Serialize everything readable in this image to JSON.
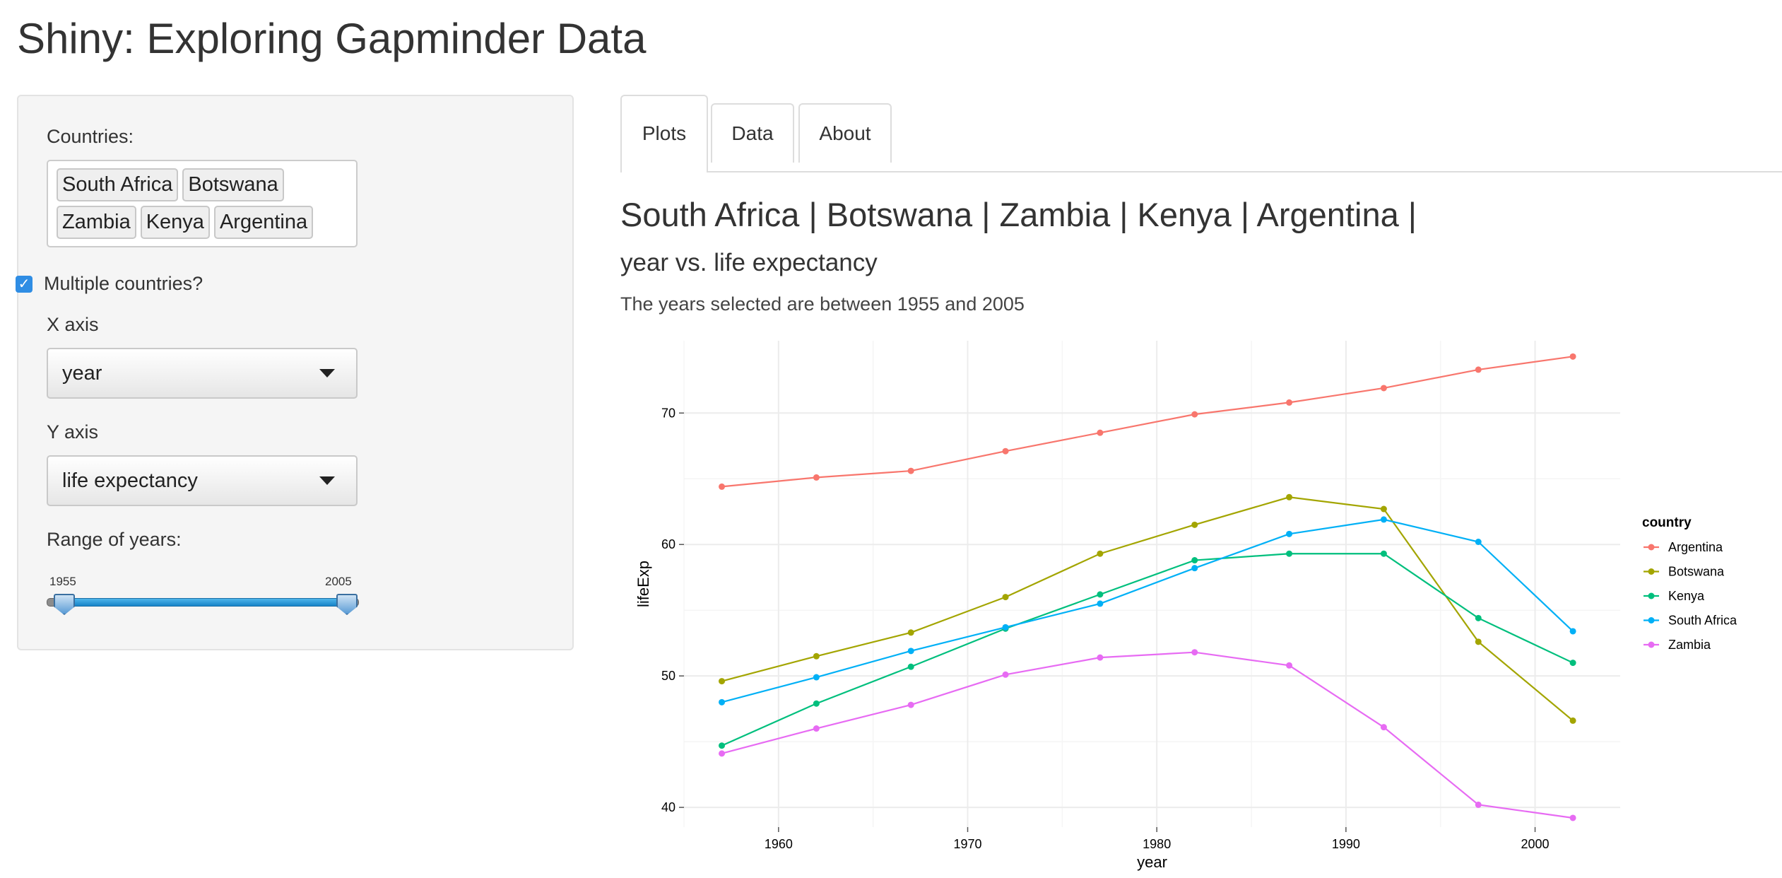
{
  "app": {
    "title": "Shiny: Exploring Gapminder Data"
  },
  "sidebar": {
    "countries_label": "Countries:",
    "countries": [
      "South Africa",
      "Botswana",
      "Zambia",
      "Kenya",
      "Argentina"
    ],
    "multiple_label": "Multiple countries?",
    "multiple_checked": true,
    "x_axis_label": "X axis",
    "x_axis_value": "year",
    "y_axis_label": "Y axis",
    "y_axis_value": "life expectancy",
    "range_label": "Range of years:",
    "range_min": "1955",
    "range_max": "2005"
  },
  "tabs": [
    {
      "label": "Plots",
      "active": true
    },
    {
      "label": "Data",
      "active": false
    },
    {
      "label": "About",
      "active": false
    }
  ],
  "main": {
    "heading": "South Africa | Botswana | Zambia | Kenya | Argentina |",
    "subheading": "year vs. life expectancy",
    "caption": "The years selected are between 1955 and 2005"
  },
  "chart_data": {
    "type": "line",
    "x": [
      1957,
      1962,
      1967,
      1972,
      1977,
      1982,
      1987,
      1992,
      1997,
      2002
    ],
    "series": [
      {
        "name": "Argentina",
        "color": "#F8766D",
        "values": [
          64.4,
          65.1,
          65.6,
          67.1,
          68.5,
          69.9,
          70.8,
          71.9,
          73.3,
          74.3
        ]
      },
      {
        "name": "Botswana",
        "color": "#A3A500",
        "values": [
          49.6,
          51.5,
          53.3,
          56.0,
          59.3,
          61.5,
          63.6,
          62.7,
          52.6,
          46.6
        ]
      },
      {
        "name": "Kenya",
        "color": "#00BF7D",
        "values": [
          44.7,
          47.9,
          50.7,
          53.6,
          56.2,
          58.8,
          59.3,
          59.3,
          54.4,
          51.0
        ]
      },
      {
        "name": "South Africa",
        "color": "#00B0F6",
        "values": [
          48.0,
          49.9,
          51.9,
          53.7,
          55.5,
          58.2,
          60.8,
          61.9,
          60.2,
          53.4
        ]
      },
      {
        "name": "Zambia",
        "color": "#E76BF3",
        "values": [
          44.1,
          46.0,
          47.8,
          50.1,
          51.4,
          51.8,
          50.8,
          46.1,
          40.2,
          39.2
        ]
      }
    ],
    "xlabel": "year",
    "ylabel": "lifeExp",
    "xlim": [
      1955,
      2004.5
    ],
    "ylim": [
      38.5,
      75.5
    ],
    "xticks": [
      1960,
      1970,
      1980,
      1990,
      2000
    ],
    "yticks": [
      40,
      50,
      60,
      70
    ],
    "legend_title": "country",
    "legend_position": "right"
  }
}
